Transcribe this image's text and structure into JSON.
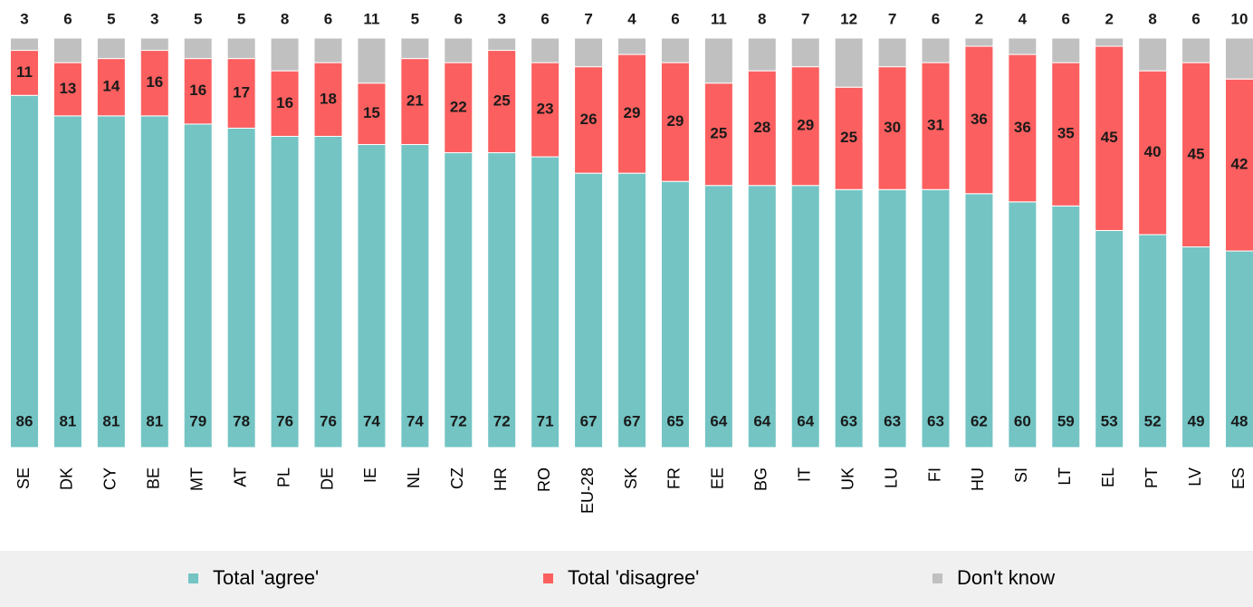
{
  "chart_data": {
    "type": "stacked_bar",
    "categories": [
      "SE",
      "DK",
      "CY",
      "BE",
      "MT",
      "AT",
      "PL",
      "DE",
      "IE",
      "NL",
      "CZ",
      "HR",
      "RO",
      "EU-28",
      "SK",
      "FR",
      "EE",
      "BG",
      "IT",
      "UK",
      "LU",
      "FI",
      "HU",
      "SI",
      "LT",
      "EL",
      "PT",
      "LV",
      "ES"
    ],
    "series": [
      {
        "name": "Total 'agree'",
        "color": "#74c4c4",
        "values": [
          86,
          81,
          81,
          81,
          79,
          78,
          76,
          76,
          74,
          74,
          72,
          72,
          71,
          67,
          67,
          65,
          64,
          64,
          64,
          63,
          63,
          63,
          62,
          60,
          59,
          53,
          52,
          49,
          48
        ]
      },
      {
        "name": "Total 'disagree'",
        "color": "#fc5f5f",
        "values": [
          11,
          13,
          14,
          16,
          16,
          17,
          16,
          18,
          15,
          21,
          22,
          25,
          23,
          26,
          29,
          29,
          25,
          28,
          29,
          25,
          30,
          31,
          36,
          36,
          35,
          45,
          40,
          45,
          42
        ]
      },
      {
        "name": "Don't know",
        "color": "#c0c0c0",
        "values": [
          3,
          6,
          5,
          3,
          5,
          5,
          8,
          6,
          11,
          5,
          6,
          3,
          6,
          7,
          4,
          6,
          11,
          8,
          7,
          12,
          7,
          6,
          2,
          4,
          6,
          2,
          8,
          6,
          10
        ]
      }
    ]
  }
}
